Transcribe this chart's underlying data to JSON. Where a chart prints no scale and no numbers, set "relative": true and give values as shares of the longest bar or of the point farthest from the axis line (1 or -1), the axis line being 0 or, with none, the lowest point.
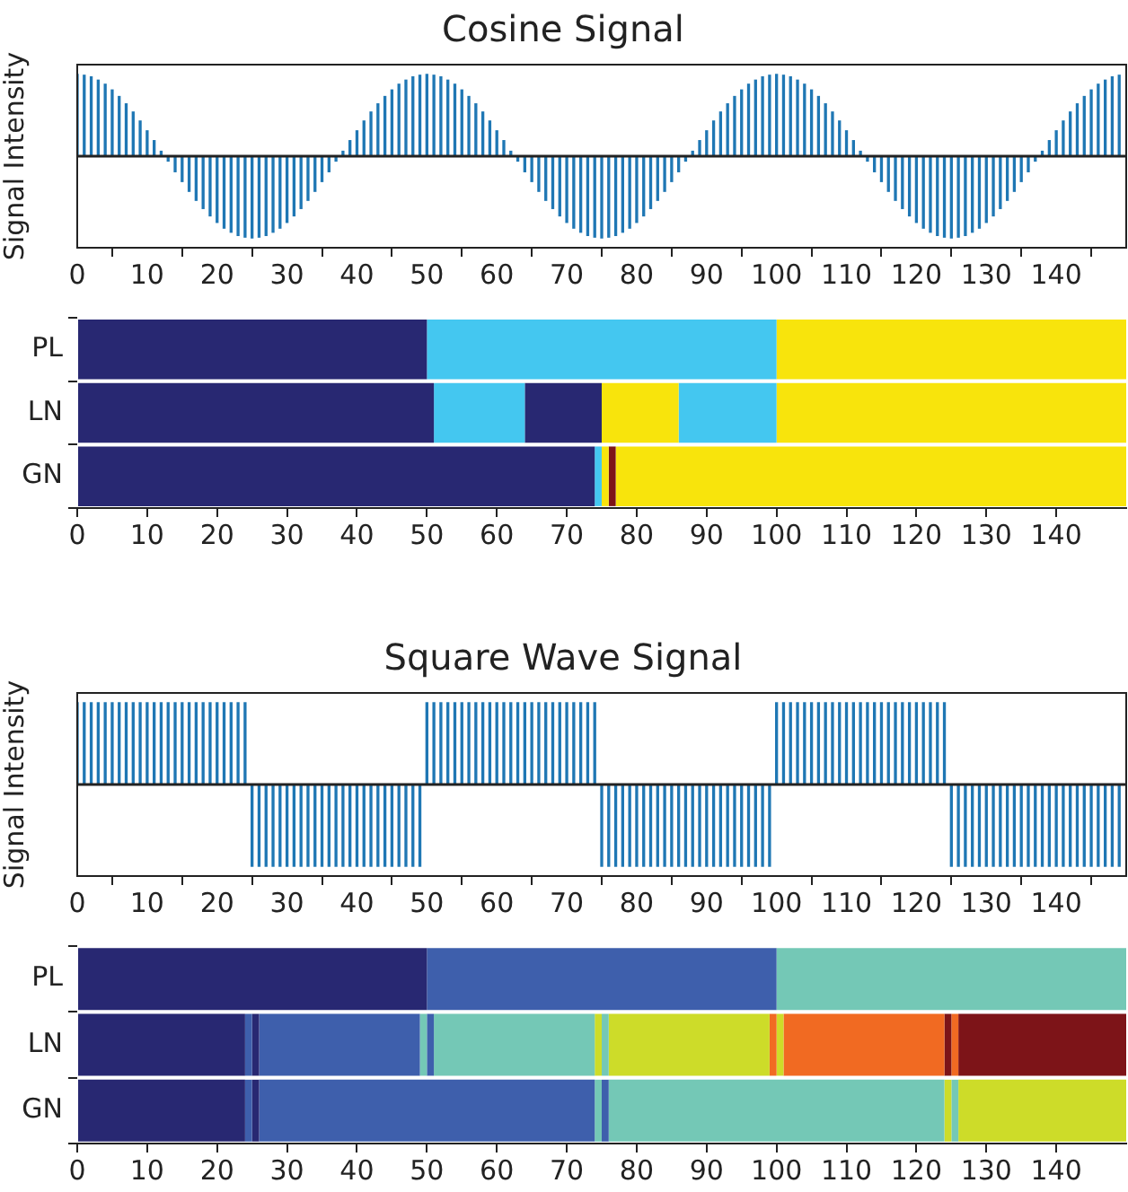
{
  "chart_data": [
    {
      "type": "bar",
      "title": "Cosine Signal",
      "ylabel": "Signal Intensity",
      "relative": true,
      "tick_labels": "x",
      "grid": false,
      "legend": false,
      "color": "#1f77b4",
      "xlim": [
        0,
        150
      ],
      "xticks": [
        0,
        10,
        20,
        30,
        40,
        50,
        60,
        70,
        80,
        90,
        100,
        110,
        120,
        130,
        140
      ],
      "ref_lines": [
        {
          "axis": "y",
          "value": 0,
          "color": "#222222"
        }
      ],
      "x": [
        0,
        1,
        2,
        3,
        4,
        5,
        6,
        7,
        8,
        9,
        10,
        11,
        12,
        13,
        14,
        15,
        16,
        17,
        18,
        19,
        20,
        21,
        22,
        23,
        24,
        25,
        26,
        27,
        28,
        29,
        30,
        31,
        32,
        33,
        34,
        35,
        36,
        37,
        38,
        39,
        40,
        41,
        42,
        43,
        44,
        45,
        46,
        47,
        48,
        49,
        50,
        51,
        52,
        53,
        54,
        55,
        56,
        57,
        58,
        59,
        60,
        61,
        62,
        63,
        64,
        65,
        66,
        67,
        68,
        69,
        70,
        71,
        72,
        73,
        74,
        75,
        76,
        77,
        78,
        79,
        80,
        81,
        82,
        83,
        84,
        85,
        86,
        87,
        88,
        89,
        90,
        91,
        92,
        93,
        94,
        95,
        96,
        97,
        98,
        99,
        100,
        101,
        102,
        103,
        104,
        105,
        106,
        107,
        108,
        109,
        110,
        111,
        112,
        113,
        114,
        115,
        116,
        117,
        118,
        119,
        120,
        121,
        122,
        123,
        124,
        125,
        126,
        127,
        128,
        129,
        130,
        131,
        132,
        133,
        134,
        135,
        136,
        137,
        138,
        139,
        140,
        141,
        142,
        143,
        144,
        145,
        146,
        147,
        148,
        149
      ],
      "values": [
        1,
        0.99,
        0.97,
        0.93,
        0.88,
        0.81,
        0.73,
        0.64,
        0.54,
        0.43,
        0.31,
        0.19,
        0.06,
        -0.06,
        -0.19,
        -0.31,
        -0.43,
        -0.54,
        -0.64,
        -0.73,
        -0.81,
        -0.88,
        -0.93,
        -0.97,
        -0.99,
        -1,
        -0.99,
        -0.97,
        -0.93,
        -0.88,
        -0.81,
        -0.73,
        -0.64,
        -0.54,
        -0.43,
        -0.31,
        -0.19,
        -0.06,
        0.06,
        0.19,
        0.31,
        0.43,
        0.54,
        0.64,
        0.73,
        0.81,
        0.88,
        0.93,
        0.97,
        0.99,
        1,
        0.99,
        0.97,
        0.93,
        0.88,
        0.81,
        0.73,
        0.64,
        0.54,
        0.43,
        0.31,
        0.19,
        0.06,
        -0.06,
        -0.19,
        -0.31,
        -0.43,
        -0.54,
        -0.64,
        -0.73,
        -0.81,
        -0.88,
        -0.93,
        -0.97,
        -0.99,
        -1,
        -0.99,
        -0.97,
        -0.93,
        -0.88,
        -0.81,
        -0.73,
        -0.64,
        -0.54,
        -0.43,
        -0.31,
        -0.19,
        -0.06,
        0.06,
        0.19,
        0.31,
        0.43,
        0.54,
        0.64,
        0.73,
        0.81,
        0.88,
        0.93,
        0.97,
        0.99,
        1,
        0.99,
        0.97,
        0.93,
        0.88,
        0.81,
        0.73,
        0.64,
        0.54,
        0.43,
        0.31,
        0.19,
        0.06,
        -0.06,
        -0.19,
        -0.31,
        -0.43,
        -0.54,
        -0.64,
        -0.73,
        -0.81,
        -0.88,
        -0.93,
        -0.97,
        -0.99,
        -1,
        -0.99,
        -0.97,
        -0.93,
        -0.88,
        -0.81,
        -0.73,
        -0.64,
        -0.54,
        -0.43,
        -0.31,
        -0.19,
        -0.06,
        0.06,
        0.19,
        0.31,
        0.43,
        0.54,
        0.64,
        0.73,
        0.81,
        0.88,
        0.93,
        0.97,
        0.99
      ]
    },
    {
      "type": "bar",
      "orientation": "horizontal",
      "stacked": true,
      "grid": false,
      "legend": false,
      "categories": [
        "PL",
        "LN",
        "GN"
      ],
      "xlim": [
        0,
        150
      ],
      "xticks": [
        0,
        10,
        20,
        30,
        40,
        50,
        60,
        70,
        80,
        90,
        100,
        110,
        120,
        130,
        140
      ],
      "series": [
        {
          "values": [
            50,
            51,
            74
          ],
          "colors": [
            "#282872",
            "#282872",
            "#282872"
          ]
        },
        {
          "values": [
            50,
            13,
            1
          ],
          "colors": [
            "#44c7f0",
            "#44c7f0",
            "#44c7f0"
          ]
        },
        {
          "values": [
            50,
            11,
            1
          ],
          "colors": [
            "#f8e40c",
            "#282872",
            "#f8e40c"
          ]
        },
        {
          "values": [
            null,
            11,
            1
          ],
          "colors": [
            null,
            "#f8e40c",
            "#7d1418"
          ]
        },
        {
          "values": [
            null,
            14,
            73
          ],
          "colors": [
            null,
            "#44c7f0",
            "#f8e40c"
          ]
        },
        {
          "values": [
            null,
            50,
            null
          ],
          "colors": [
            null,
            "#f8e40c",
            null
          ]
        }
      ]
    },
    {
      "type": "bar",
      "title": "Square Wave Signal",
      "ylabel": "Signal Intensity",
      "relative": true,
      "tick_labels": "x",
      "grid": false,
      "legend": false,
      "color": "#1f77b4",
      "xlim": [
        0,
        150
      ],
      "xticks": [
        0,
        10,
        20,
        30,
        40,
        50,
        60,
        70,
        80,
        90,
        100,
        110,
        120,
        130,
        140
      ],
      "ref_lines": [
        {
          "axis": "y",
          "value": 0,
          "color": "#222222"
        }
      ],
      "x": [
        0,
        1,
        2,
        3,
        4,
        5,
        6,
        7,
        8,
        9,
        10,
        11,
        12,
        13,
        14,
        15,
        16,
        17,
        18,
        19,
        20,
        21,
        22,
        23,
        24,
        25,
        26,
        27,
        28,
        29,
        30,
        31,
        32,
        33,
        34,
        35,
        36,
        37,
        38,
        39,
        40,
        41,
        42,
        43,
        44,
        45,
        46,
        47,
        48,
        49,
        50,
        51,
        52,
        53,
        54,
        55,
        56,
        57,
        58,
        59,
        60,
        61,
        62,
        63,
        64,
        65,
        66,
        67,
        68,
        69,
        70,
        71,
        72,
        73,
        74,
        75,
        76,
        77,
        78,
        79,
        80,
        81,
        82,
        83,
        84,
        85,
        86,
        87,
        88,
        89,
        90,
        91,
        92,
        93,
        94,
        95,
        96,
        97,
        98,
        99,
        100,
        101,
        102,
        103,
        104,
        105,
        106,
        107,
        108,
        109,
        110,
        111,
        112,
        113,
        114,
        115,
        116,
        117,
        118,
        119,
        120,
        121,
        122,
        123,
        124,
        125,
        126,
        127,
        128,
        129,
        130,
        131,
        132,
        133,
        134,
        135,
        136,
        137,
        138,
        139,
        140,
        141,
        142,
        143,
        144,
        145,
        146,
        147,
        148,
        149
      ],
      "values": [
        1,
        1,
        1,
        1,
        1,
        1,
        1,
        1,
        1,
        1,
        1,
        1,
        1,
        1,
        1,
        1,
        1,
        1,
        1,
        1,
        1,
        1,
        1,
        1,
        1,
        -1,
        -1,
        -1,
        -1,
        -1,
        -1,
        -1,
        -1,
        -1,
        -1,
        -1,
        -1,
        -1,
        -1,
        -1,
        -1,
        -1,
        -1,
        -1,
        -1,
        -1,
        -1,
        -1,
        -1,
        -1,
        1,
        1,
        1,
        1,
        1,
        1,
        1,
        1,
        1,
        1,
        1,
        1,
        1,
        1,
        1,
        1,
        1,
        1,
        1,
        1,
        1,
        1,
        1,
        1,
        1,
        -1,
        -1,
        -1,
        -1,
        -1,
        -1,
        -1,
        -1,
        -1,
        -1,
        -1,
        -1,
        -1,
        -1,
        -1,
        -1,
        -1,
        -1,
        -1,
        -1,
        -1,
        -1,
        -1,
        -1,
        -1,
        1,
        1,
        1,
        1,
        1,
        1,
        1,
        1,
        1,
        1,
        1,
        1,
        1,
        1,
        1,
        1,
        1,
        1,
        1,
        1,
        1,
        1,
        1,
        1,
        1,
        -1,
        -1,
        -1,
        -1,
        -1,
        -1,
        -1,
        -1,
        -1,
        -1,
        -1,
        -1,
        -1,
        -1,
        -1,
        -1,
        -1,
        -1,
        -1,
        -1,
        -1,
        -1,
        -1,
        -1,
        -1
      ]
    },
    {
      "type": "bar",
      "orientation": "horizontal",
      "stacked": true,
      "grid": false,
      "legend": false,
      "categories": [
        "PL",
        "LN",
        "GN"
      ],
      "xlim": [
        0,
        150
      ],
      "xticks": [
        0,
        10,
        20,
        30,
        40,
        50,
        60,
        70,
        80,
        90,
        100,
        110,
        120,
        130,
        140
      ],
      "series": [
        {
          "values": [
            50,
            24,
            24
          ],
          "colors": [
            "#282872",
            "#282872",
            "#282872"
          ]
        },
        {
          "values": [
            50,
            1,
            1
          ],
          "colors": [
            "#3e5fac",
            "#3e5fac",
            "#3e5fac"
          ]
        },
        {
          "values": [
            50,
            1,
            1
          ],
          "colors": [
            "#74c8b6",
            "#282872",
            "#282872"
          ]
        },
        {
          "values": [
            null,
            23,
            48
          ],
          "colors": [
            null,
            "#3e5fac",
            "#3e5fac"
          ]
        },
        {
          "values": [
            null,
            1,
            1
          ],
          "colors": [
            null,
            "#74c8b6",
            "#74c8b6"
          ]
        },
        {
          "values": [
            null,
            1,
            1
          ],
          "colors": [
            null,
            "#3e5fac",
            "#3e5fac"
          ]
        },
        {
          "values": [
            null,
            23,
            48
          ],
          "colors": [
            null,
            "#74c8b6",
            "#74c8b6"
          ]
        },
        {
          "values": [
            null,
            1,
            1
          ],
          "colors": [
            null,
            "#cddc29",
            "#cddc29"
          ]
        },
        {
          "values": [
            null,
            1,
            1
          ],
          "colors": [
            null,
            "#74c8b6",
            "#74c8b6"
          ]
        },
        {
          "values": [
            null,
            23,
            24
          ],
          "colors": [
            null,
            "#cddc29",
            "#cddc29"
          ]
        },
        {
          "values": [
            null,
            1,
            null
          ],
          "colors": [
            null,
            "#f16a22",
            null
          ]
        },
        {
          "values": [
            null,
            1,
            null
          ],
          "colors": [
            null,
            "#cddc29",
            null
          ]
        },
        {
          "values": [
            null,
            23,
            null
          ],
          "colors": [
            null,
            "#f16a22",
            null
          ]
        },
        {
          "values": [
            null,
            1,
            null
          ],
          "colors": [
            null,
            "#7d1418",
            null
          ]
        },
        {
          "values": [
            null,
            1,
            null
          ],
          "colors": [
            null,
            "#f16a22",
            null
          ]
        },
        {
          "values": [
            null,
            24,
            null
          ],
          "colors": [
            null,
            "#7d1418",
            null
          ]
        }
      ]
    }
  ]
}
